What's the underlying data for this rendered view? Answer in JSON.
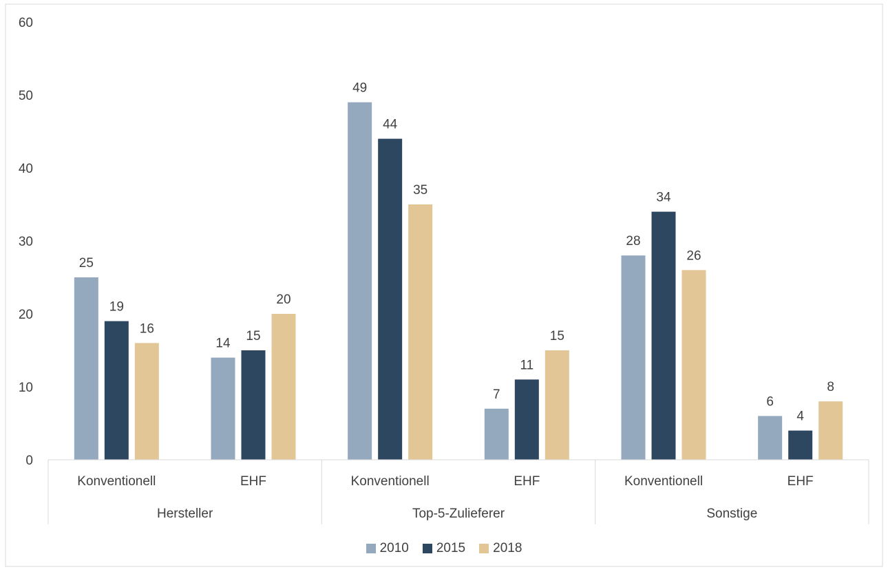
{
  "chart_data": {
    "type": "bar",
    "groups": [
      {
        "label": "Hersteller",
        "subcategories": [
          "Konventionell",
          "EHF"
        ]
      },
      {
        "label": "Top-5-Zulieferer",
        "subcategories": [
          "Konventionell",
          "EHF"
        ]
      },
      {
        "label": "Sonstige",
        "subcategories": [
          "Konventionell",
          "EHF"
        ]
      }
    ],
    "categories": [
      "Hersteller / Konventionell",
      "Hersteller / EHF",
      "Top-5-Zulieferer / Konventionell",
      "Top-5-Zulieferer / EHF",
      "Sonstige / Konventionell",
      "Sonstige / EHF"
    ],
    "series": [
      {
        "name": "2010",
        "color": "#94a8be",
        "values": [
          25,
          14,
          49,
          7,
          28,
          6
        ]
      },
      {
        "name": "2015",
        "color": "#2e4761",
        "values": [
          19,
          15,
          44,
          11,
          34,
          4
        ]
      },
      {
        "name": "2018",
        "color": "#e2c696",
        "values": [
          16,
          20,
          35,
          15,
          26,
          8
        ]
      }
    ],
    "yticks": [
      "0",
      "10",
      "20",
      "30",
      "40",
      "50",
      "60"
    ],
    "ylim": [
      0,
      60
    ],
    "grid": false,
    "data_labels": true,
    "legend_position": "bottom",
    "title": "",
    "xlabel": "",
    "ylabel": ""
  }
}
